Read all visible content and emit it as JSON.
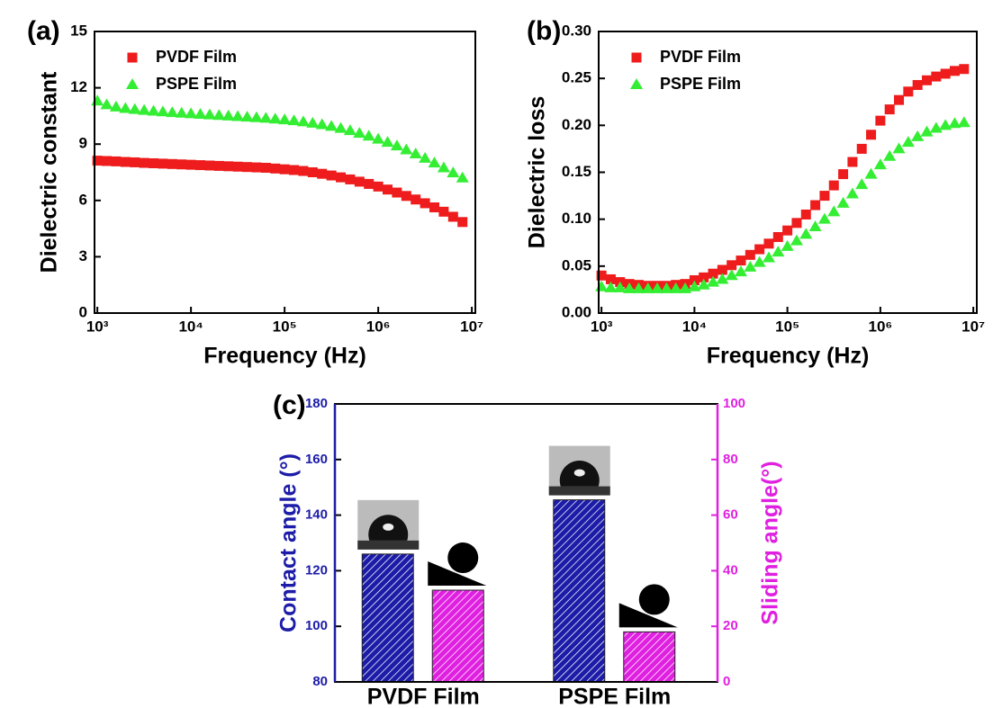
{
  "chart_data": [
    {
      "type": "scatter",
      "title": "(a)",
      "xlabel": "Frequency (Hz)",
      "ylabel": "Dielectric constant",
      "xscale": "log",
      "xlim": [
        933,
        10900000
      ],
      "xticks": [
        {
          "value": 1000,
          "label": "10³"
        },
        {
          "value": 10000,
          "label": "10⁴"
        },
        {
          "value": 100000,
          "label": "10⁵"
        },
        {
          "value": 1000000,
          "label": "10⁶"
        },
        {
          "value": 10000000,
          "label": "10⁷"
        }
      ],
      "ylim": [
        0,
        15
      ],
      "yticks": [
        0,
        3,
        6,
        9,
        12,
        15
      ],
      "legend": "upper left",
      "x": [
        1000,
        1259,
        1585,
        1995,
        2512,
        3162,
        3981,
        5012,
        6310,
        7943,
        10000,
        12589,
        15849,
        19953,
        25119,
        31623,
        39811,
        50119,
        63096,
        79433,
        100000,
        125893,
        158489,
        199526,
        251189,
        316228,
        398107,
        501187,
        630957,
        794328,
        1000000,
        1258925,
        1584893,
        1995262,
        2511886,
        3162278,
        3981072,
        5011872,
        6309573,
        7943282
      ],
      "series": [
        {
          "name": "PVDF Film",
          "color": "#ee1c1c",
          "marker": "square",
          "values": [
            8.12,
            8.1,
            8.08,
            8.05,
            8.03,
            8.0,
            7.98,
            7.96,
            7.94,
            7.92,
            7.9,
            7.88,
            7.86,
            7.84,
            7.82,
            7.8,
            7.78,
            7.76,
            7.74,
            7.7,
            7.66,
            7.62,
            7.57,
            7.5,
            7.42,
            7.33,
            7.23,
            7.12,
            7.0,
            6.88,
            6.74,
            6.58,
            6.42,
            6.24,
            6.05,
            5.85,
            5.63,
            5.4,
            5.13,
            4.85
          ]
        },
        {
          "name": "PSPE Film",
          "color": "#33ee33",
          "marker": "triangle",
          "values": [
            11.3,
            11.1,
            10.98,
            10.9,
            10.85,
            10.8,
            10.76,
            10.72,
            10.68,
            10.65,
            10.62,
            10.59,
            10.56,
            10.53,
            10.5,
            10.47,
            10.44,
            10.41,
            10.38,
            10.34,
            10.3,
            10.25,
            10.19,
            10.12,
            10.04,
            9.95,
            9.84,
            9.72,
            9.58,
            9.43,
            9.27,
            9.1,
            8.91,
            8.7,
            8.48,
            8.25,
            8.0,
            7.74,
            7.47,
            7.2
          ]
        }
      ]
    },
    {
      "type": "scatter",
      "title": "(b)",
      "xlabel": "Frequency (Hz)",
      "ylabel": "Dielectric loss",
      "xscale": "log",
      "xlim": [
        933,
        10900000
      ],
      "xticks": [
        {
          "value": 1000,
          "label": "10³"
        },
        {
          "value": 10000,
          "label": "10⁴"
        },
        {
          "value": 100000,
          "label": "10⁵"
        },
        {
          "value": 1000000,
          "label": "10⁶"
        },
        {
          "value": 10000000,
          "label": "10⁷"
        }
      ],
      "ylim": [
        0,
        0.3
      ],
      "yticks": [
        {
          "value": 0,
          "label": "0.00"
        },
        0.05,
        {
          "value": 0.1,
          "label": "0.10"
        },
        0.15,
        {
          "value": 0.2,
          "label": "0.20"
        },
        0.25,
        {
          "value": 0.3,
          "label": "0.30"
        }
      ],
      "legend": "upper left",
      "x": [
        1000,
        1259,
        1585,
        1995,
        2512,
        3162,
        3981,
        5012,
        6310,
        7943,
        10000,
        12589,
        15849,
        19953,
        25119,
        31623,
        39811,
        50119,
        63096,
        79433,
        100000,
        125893,
        158489,
        199526,
        251189,
        316228,
        398107,
        501187,
        630957,
        794328,
        1000000,
        1258925,
        1584893,
        1995262,
        2511886,
        3162278,
        3981072,
        5011872,
        6309573,
        7943282
      ],
      "series": [
        {
          "name": "PVDF Film",
          "color": "#ee1c1c",
          "marker": "square",
          "values": [
            0.04,
            0.036,
            0.033,
            0.031,
            0.03,
            0.029,
            0.029,
            0.029,
            0.03,
            0.031,
            0.035,
            0.038,
            0.042,
            0.046,
            0.051,
            0.056,
            0.062,
            0.068,
            0.074,
            0.081,
            0.088,
            0.096,
            0.105,
            0.115,
            0.125,
            0.136,
            0.148,
            0.161,
            0.175,
            0.19,
            0.205,
            0.217,
            0.227,
            0.236,
            0.243,
            0.248,
            0.252,
            0.255,
            0.258,
            0.26
          ]
        },
        {
          "name": "PSPE Film",
          "color": "#33ee33",
          "marker": "triangle",
          "values": [
            0.028,
            0.027,
            0.027,
            0.026,
            0.026,
            0.026,
            0.026,
            0.026,
            0.026,
            0.026,
            0.028,
            0.03,
            0.033,
            0.036,
            0.04,
            0.044,
            0.049,
            0.054,
            0.059,
            0.065,
            0.071,
            0.077,
            0.084,
            0.092,
            0.1,
            0.108,
            0.117,
            0.127,
            0.137,
            0.148,
            0.158,
            0.167,
            0.175,
            0.182,
            0.188,
            0.193,
            0.197,
            0.2,
            0.202,
            0.203
          ]
        }
      ]
    },
    {
      "type": "bar",
      "title": "(c)",
      "ylabel": "Contact angle (°)",
      "y2label": "Sliding angle(°)",
      "categories": [
        "PVDF Film",
        "PSPE Film"
      ],
      "ylim": [
        80,
        180
      ],
      "yticks": [
        80,
        100,
        120,
        140,
        160,
        180
      ],
      "y2lim": [
        0,
        100
      ],
      "y2ticks": [
        0,
        20,
        40,
        60,
        80,
        100
      ],
      "series": [
        {
          "color": "#1c1ca8",
          "axis": "y",
          "values": [
            126,
            145.5
          ]
        },
        {
          "color": "#e020e0",
          "axis": "y2",
          "values": [
            33,
            18
          ]
        }
      ]
    }
  ]
}
